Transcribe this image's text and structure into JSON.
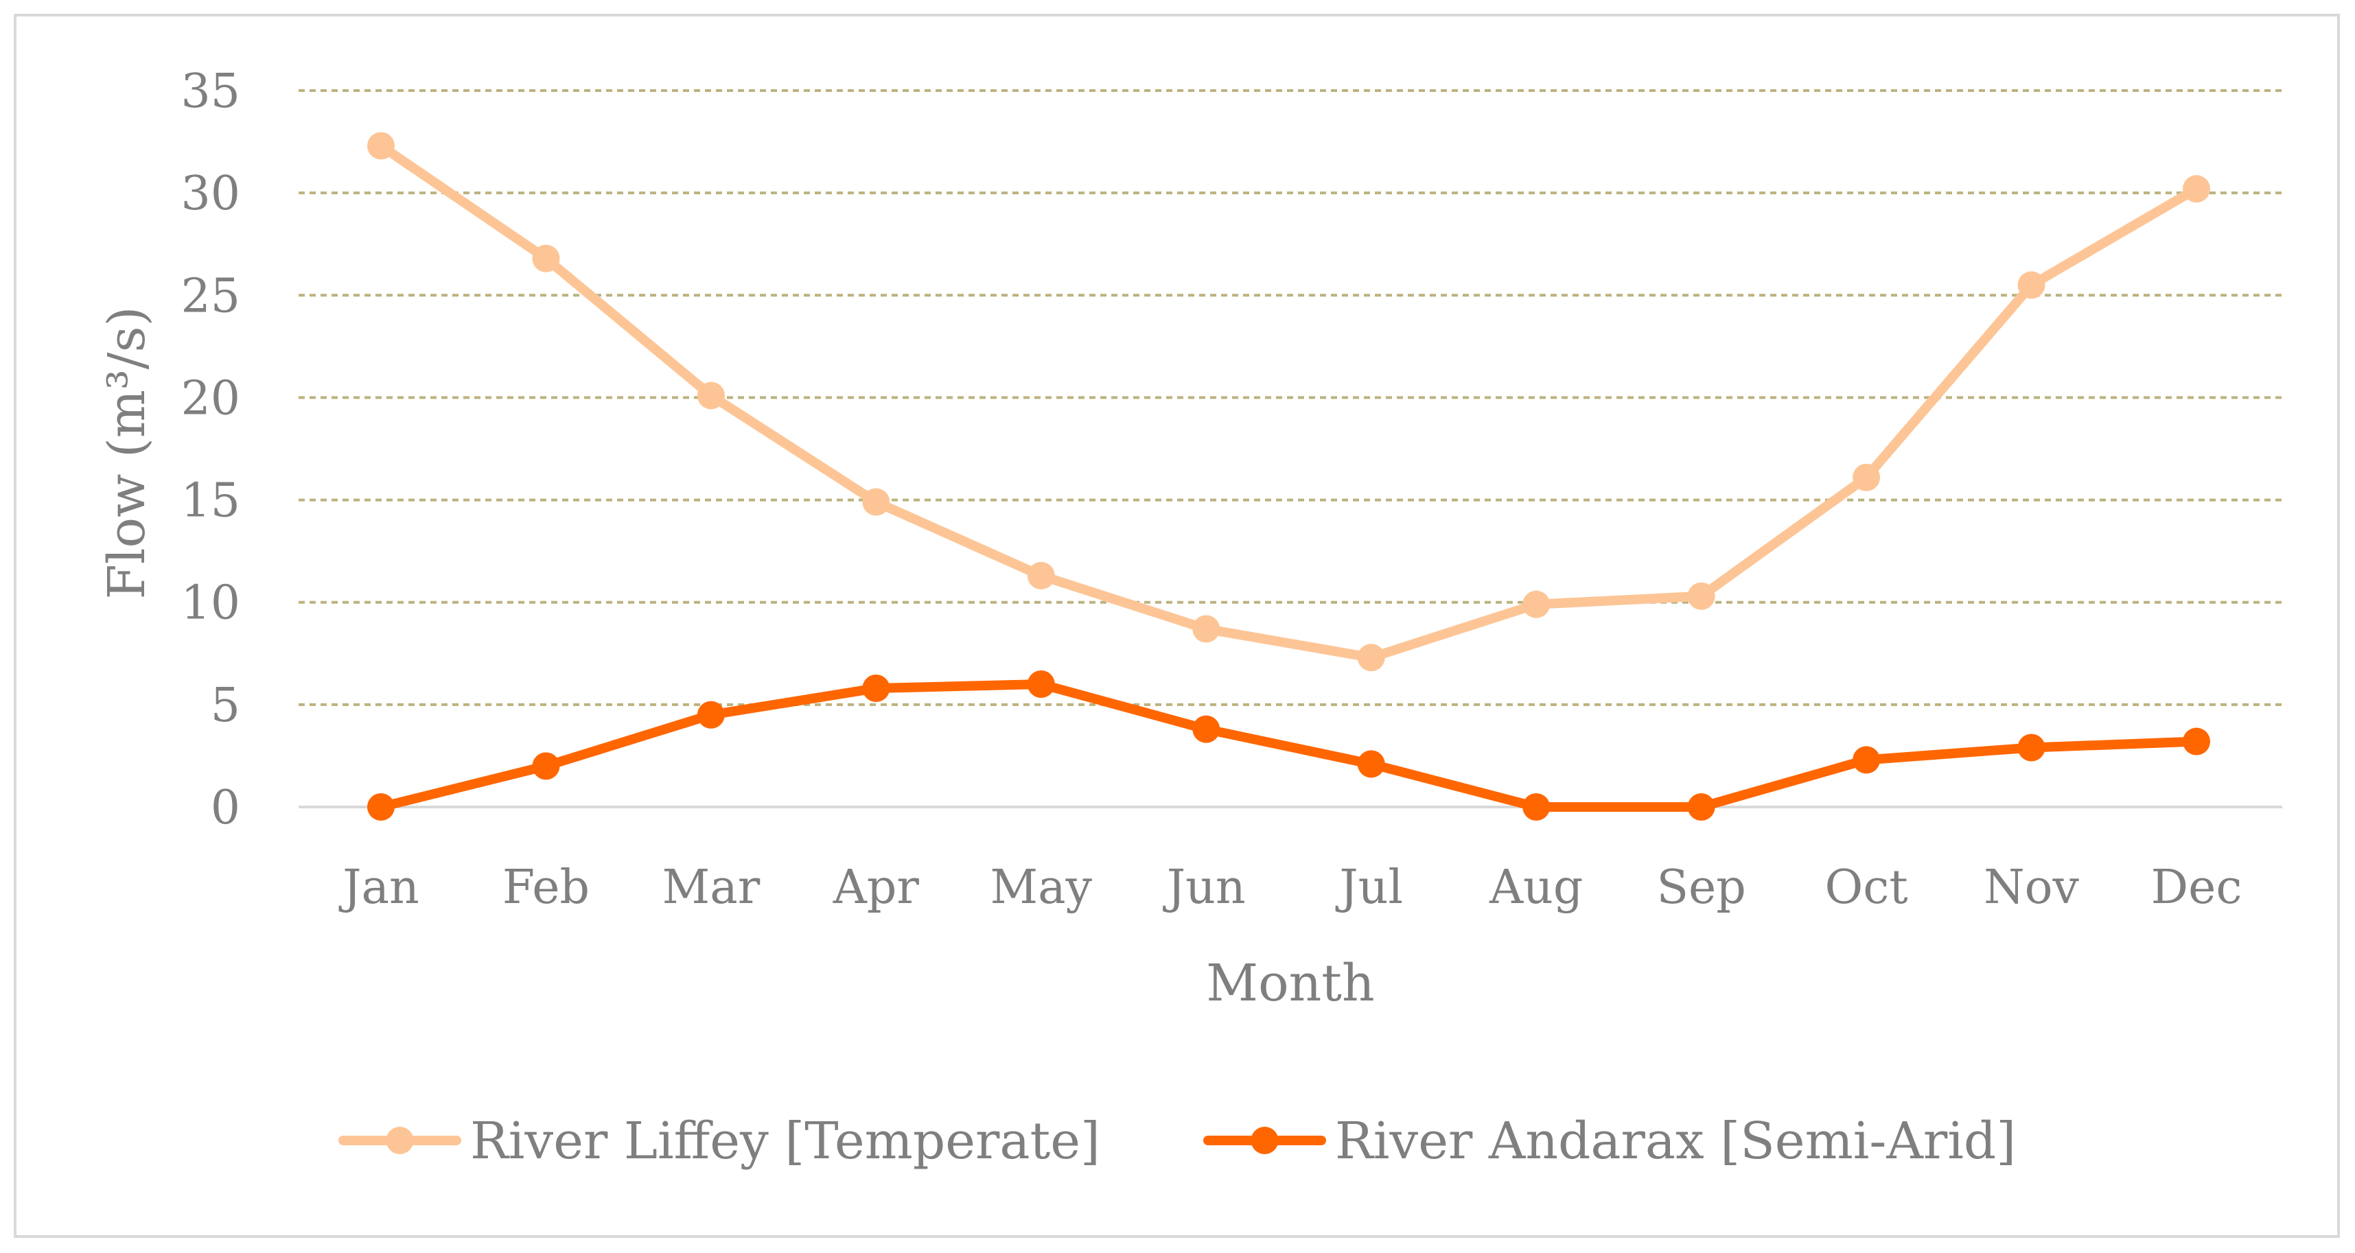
{
  "chart_data": {
    "type": "line",
    "xlabel": "Month",
    "ylabel": "Flow (m³/s)",
    "ylim": [
      0,
      35
    ],
    "yticks": [
      0,
      5,
      10,
      15,
      20,
      25,
      30,
      35
    ],
    "grid": true,
    "legend_position": "bottom",
    "categories": [
      "Jan",
      "Feb",
      "Mar",
      "Apr",
      "May",
      "Jun",
      "Jul",
      "Aug",
      "Sep",
      "Oct",
      "Nov",
      "Dec"
    ],
    "series": [
      {
        "name": "River Liffey [Temperate]",
        "color": "#fdc596",
        "values": [
          32.3,
          26.8,
          20.1,
          14.9,
          11.3,
          8.7,
          7.3,
          9.9,
          10.3,
          16.1,
          25.5,
          30.2
        ]
      },
      {
        "name": "River Andarax [Semi-Arid]",
        "color": "#ff6600",
        "values": [
          0,
          2.0,
          4.5,
          5.8,
          6.0,
          3.8,
          2.1,
          0,
          0,
          2.3,
          2.9,
          3.2
        ]
      }
    ],
    "gridline_color": "#bcb27f",
    "axis_color": "#d9d9d9"
  }
}
